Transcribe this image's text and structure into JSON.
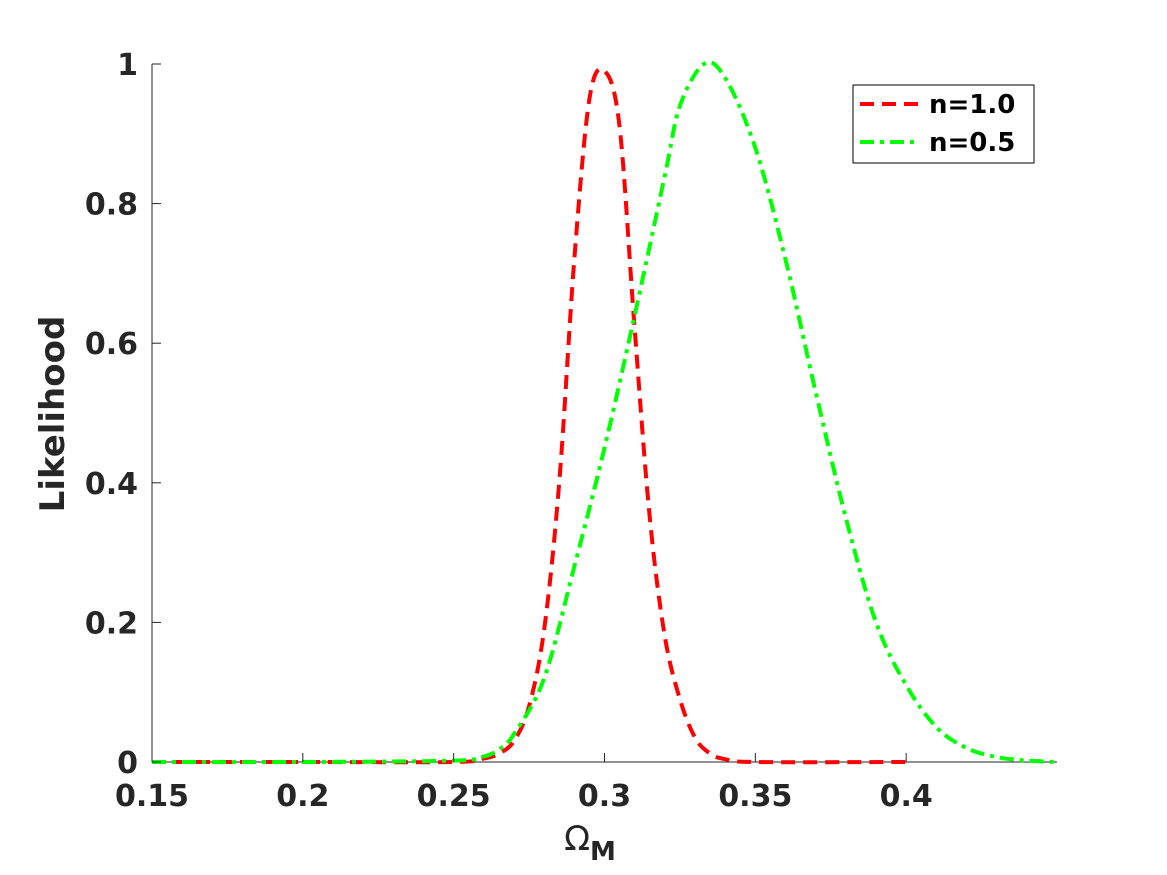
{
  "chart_data": {
    "type": "line",
    "xlabel": "Ω",
    "xlabel_sub": "M",
    "ylabel": "Likelihood",
    "xlim": [
      0.15,
      0.45
    ],
    "ylim": [
      0,
      1
    ],
    "xticks": [
      0.15,
      0.2,
      0.25,
      0.3,
      0.35,
      0.4
    ],
    "xtick_labels": [
      "0.15",
      "0.2",
      "0.25",
      "0.3",
      "0.35",
      "0.4"
    ],
    "yticks": [
      0,
      0.2,
      0.4,
      0.6,
      0.8,
      1
    ],
    "ytick_labels": [
      "0",
      "0.2",
      "0.4",
      "0.6",
      "0.8",
      "1"
    ],
    "grid": false,
    "legend_position": "top-right",
    "series": [
      {
        "name": "n=1.0",
        "color": "#ff0000",
        "style": "dashed",
        "x": [
          0.15,
          0.2,
          0.25,
          0.26,
          0.265,
          0.27,
          0.275,
          0.28,
          0.285,
          0.29,
          0.295,
          0.3,
          0.305,
          0.31,
          0.315,
          0.32,
          0.325,
          0.33,
          0.335,
          0.34,
          0.35,
          0.4
        ],
        "y": [
          0.0,
          0.0,
          0.0,
          0.005,
          0.012,
          0.03,
          0.08,
          0.19,
          0.4,
          0.72,
          0.95,
          0.99,
          0.91,
          0.62,
          0.35,
          0.18,
          0.09,
          0.035,
          0.012,
          0.004,
          0.0,
          0.0
        ]
      },
      {
        "name": "n=0.5",
        "color": "#00ff00",
        "style": "dashdot",
        "x": [
          0.15,
          0.2,
          0.25,
          0.26,
          0.265,
          0.27,
          0.28,
          0.29,
          0.3,
          0.31,
          0.32,
          0.325,
          0.333,
          0.34,
          0.35,
          0.36,
          0.37,
          0.38,
          0.39,
          0.4,
          0.41,
          0.42,
          0.43,
          0.44,
          0.45
        ],
        "y": [
          0.0,
          0.0,
          0.002,
          0.008,
          0.018,
          0.04,
          0.12,
          0.28,
          0.45,
          0.64,
          0.84,
          0.94,
          1.0,
          0.98,
          0.88,
          0.72,
          0.53,
          0.35,
          0.2,
          0.11,
          0.05,
          0.02,
          0.007,
          0.002,
          0.0
        ]
      }
    ]
  }
}
